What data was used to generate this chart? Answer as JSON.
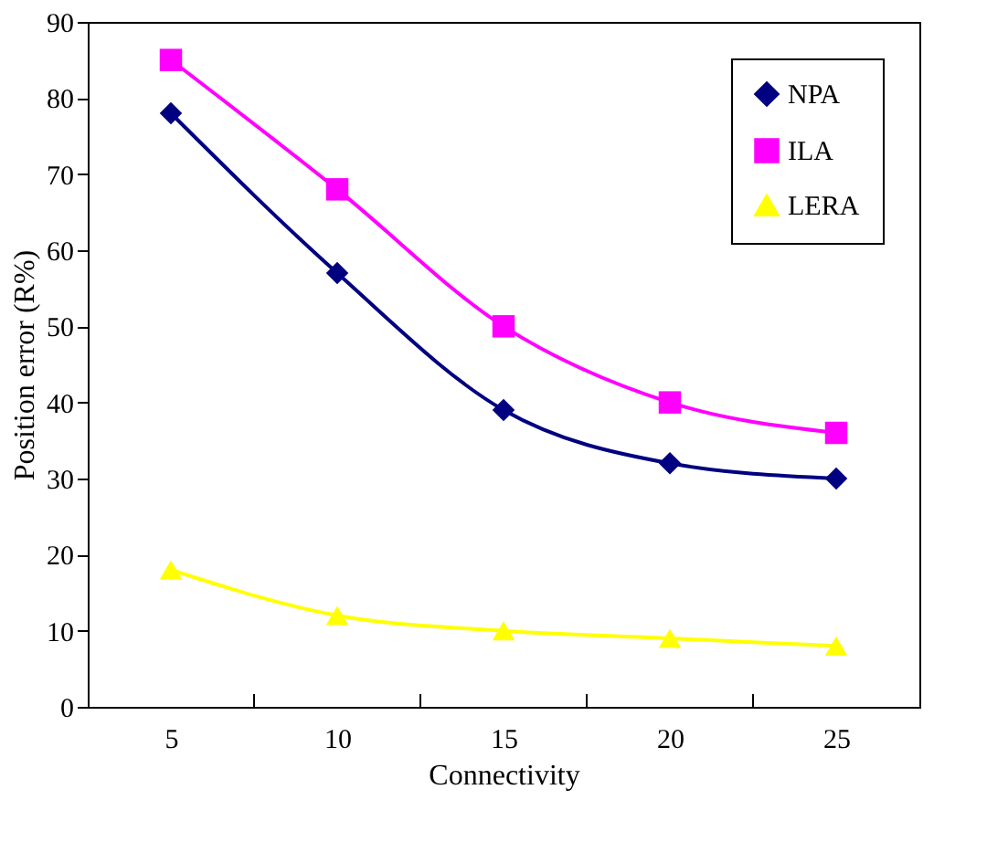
{
  "chart_data": {
    "type": "line",
    "xlabel": "Connectivity",
    "ylabel": "Position error (R%)",
    "categories": [
      "5",
      "10",
      "15",
      "20",
      "25"
    ],
    "series": [
      {
        "name": "NPA",
        "color": "#000080",
        "marker": "diamond",
        "values": [
          78,
          57,
          39,
          32,
          30
        ]
      },
      {
        "name": "ILA",
        "color": "#ff00ff",
        "marker": "square",
        "values": [
          85,
          68,
          50,
          40,
          36
        ]
      },
      {
        "name": "LERA",
        "color": "#ffff00",
        "marker": "triangle",
        "values": [
          18,
          12,
          10,
          9,
          8
        ]
      }
    ],
    "ylim": [
      0,
      90
    ],
    "yticks": [
      0,
      10,
      20,
      30,
      40,
      50,
      60,
      70,
      80,
      90
    ],
    "grid": false,
    "legend": "top right",
    "line_style": "solid"
  }
}
